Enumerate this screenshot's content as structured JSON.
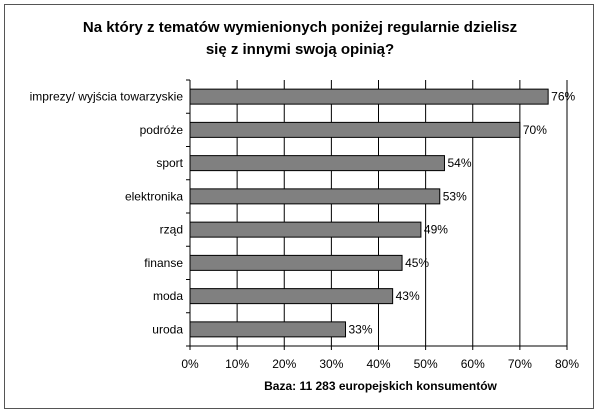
{
  "chart_data": {
    "type": "bar",
    "orientation": "horizontal",
    "title": "Na który z tematów wymienionych poniżej regularnie dzielisz się z innymi swoją opinią?",
    "title_lines": [
      "Na który z tematów wymienionych poniżej regularnie dzielisz",
      "się z innymi swoją opinią?"
    ],
    "categories": [
      "imprezy/ wyjścia towarzyskie",
      "podróże",
      "sport",
      "elektronika",
      "rząd",
      "finanse",
      "moda",
      "uroda"
    ],
    "values": [
      76,
      70,
      54,
      53,
      49,
      45,
      43,
      33
    ],
    "value_labels": [
      "76%",
      "70%",
      "54%",
      "53%",
      "49%",
      "45%",
      "43%",
      "33%"
    ],
    "xlabel": "Baza: 11 283 europejskich konsumentów",
    "ylabel": "",
    "xlim": [
      0,
      80
    ],
    "x_ticks": [
      "0%",
      "10%",
      "20%",
      "30%",
      "40%",
      "50%",
      "60%",
      "70%",
      "80%"
    ],
    "grid": true,
    "legend": "none",
    "bar_color": "#808080"
  }
}
